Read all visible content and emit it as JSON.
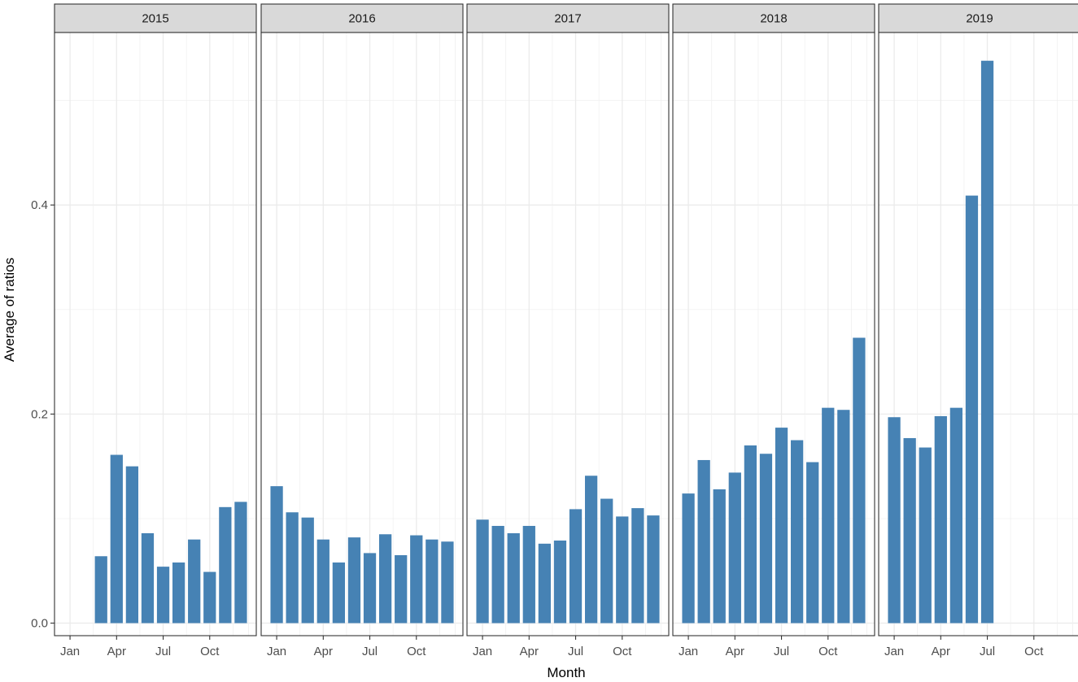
{
  "chart_data": {
    "type": "bar",
    "facet_by": "year",
    "xlabel": "Month",
    "ylabel": "Average of ratios",
    "ylim": [
      -0.012,
      0.565
    ],
    "y_ticks": [
      0.0,
      0.2,
      0.4
    ],
    "y_tick_labels": [
      "0.0",
      "0.2",
      "0.4"
    ],
    "x_ticks": [
      "Jan",
      "Apr",
      "Jul",
      "Oct"
    ],
    "months": [
      "Jan",
      "Feb",
      "Mar",
      "Apr",
      "May",
      "Jun",
      "Jul",
      "Aug",
      "Sep",
      "Oct",
      "Nov",
      "Dec"
    ],
    "grid": true,
    "bar_color": "#4682B4",
    "facets": [
      {
        "label": "2015",
        "values": [
          null,
          null,
          0.064,
          0.161,
          0.15,
          0.086,
          0.054,
          0.058,
          0.08,
          0.049,
          0.111,
          0.116
        ]
      },
      {
        "label": "2016",
        "values": [
          0.131,
          0.106,
          0.101,
          0.08,
          0.058,
          0.082,
          0.067,
          0.085,
          0.065,
          0.084,
          0.08,
          0.078
        ]
      },
      {
        "label": "2017",
        "values": [
          0.099,
          0.093,
          0.086,
          0.093,
          0.076,
          0.079,
          0.109,
          0.141,
          0.119,
          0.102,
          0.11,
          0.103
        ]
      },
      {
        "label": "2018",
        "values": [
          0.124,
          0.156,
          0.128,
          0.144,
          0.17,
          0.162,
          0.187,
          0.175,
          0.154,
          0.206,
          0.204,
          0.273
        ]
      },
      {
        "label": "2019",
        "values": [
          0.197,
          0.177,
          0.168,
          0.198,
          0.206,
          0.409,
          0.538,
          null,
          null,
          null,
          null,
          null
        ]
      }
    ]
  }
}
